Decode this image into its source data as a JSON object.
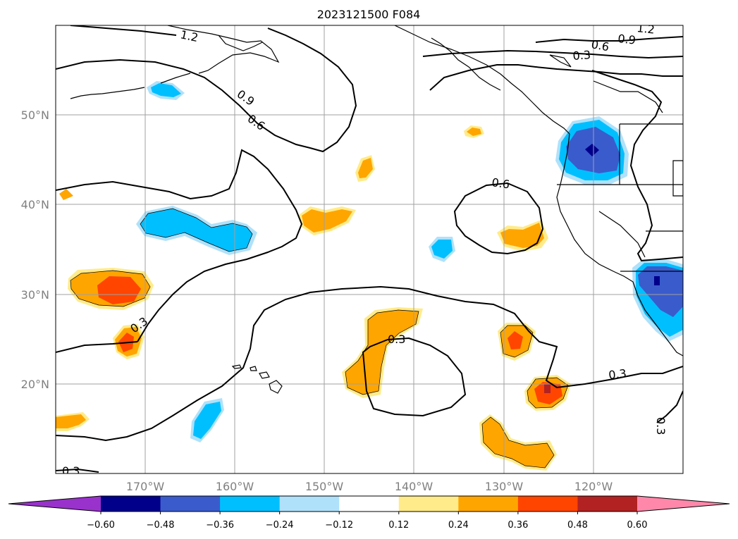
{
  "title": "2023121500 F084",
  "map": {
    "projection": "PlateCarree",
    "lon_range": [
      -180,
      -110
    ],
    "lat_range": [
      10,
      60
    ],
    "gridlines": true,
    "lat_labels": [
      "50°N",
      "40°N",
      "30°N",
      "20°N"
    ],
    "lon_labels": [
      "170°W",
      "160°W",
      "150°W",
      "140°W",
      "130°W",
      "120°W"
    ],
    "contour_labels": [
      "1.2",
      "0.9",
      "0.6",
      "0.3",
      "0.9",
      "0.6",
      "0.6",
      "0.3",
      "0.3",
      "0.3",
      "0.3",
      "1.2",
      "0.3"
    ],
    "contour_color": "#000000",
    "land_outline_color": "#000000"
  },
  "colorbar": {
    "orientation": "horizontal",
    "extend": "both",
    "tick_labels": [
      "−0.60",
      "−0.48",
      "−0.36",
      "−0.24",
      "−0.12",
      "0.12",
      "0.24",
      "0.36",
      "0.48",
      "0.60"
    ],
    "levels": [
      -0.6,
      -0.48,
      -0.36,
      -0.24,
      -0.12,
      0.12,
      0.24,
      0.36,
      0.48,
      0.6
    ],
    "colors": [
      "#9932cc",
      "#00008b",
      "#3a5bcc",
      "#00bfff",
      "#afe1fa",
      "#ffffff",
      "#ffeb8a",
      "#ffa500",
      "#ff4500",
      "#b22222",
      "#ff88aa"
    ]
  }
}
